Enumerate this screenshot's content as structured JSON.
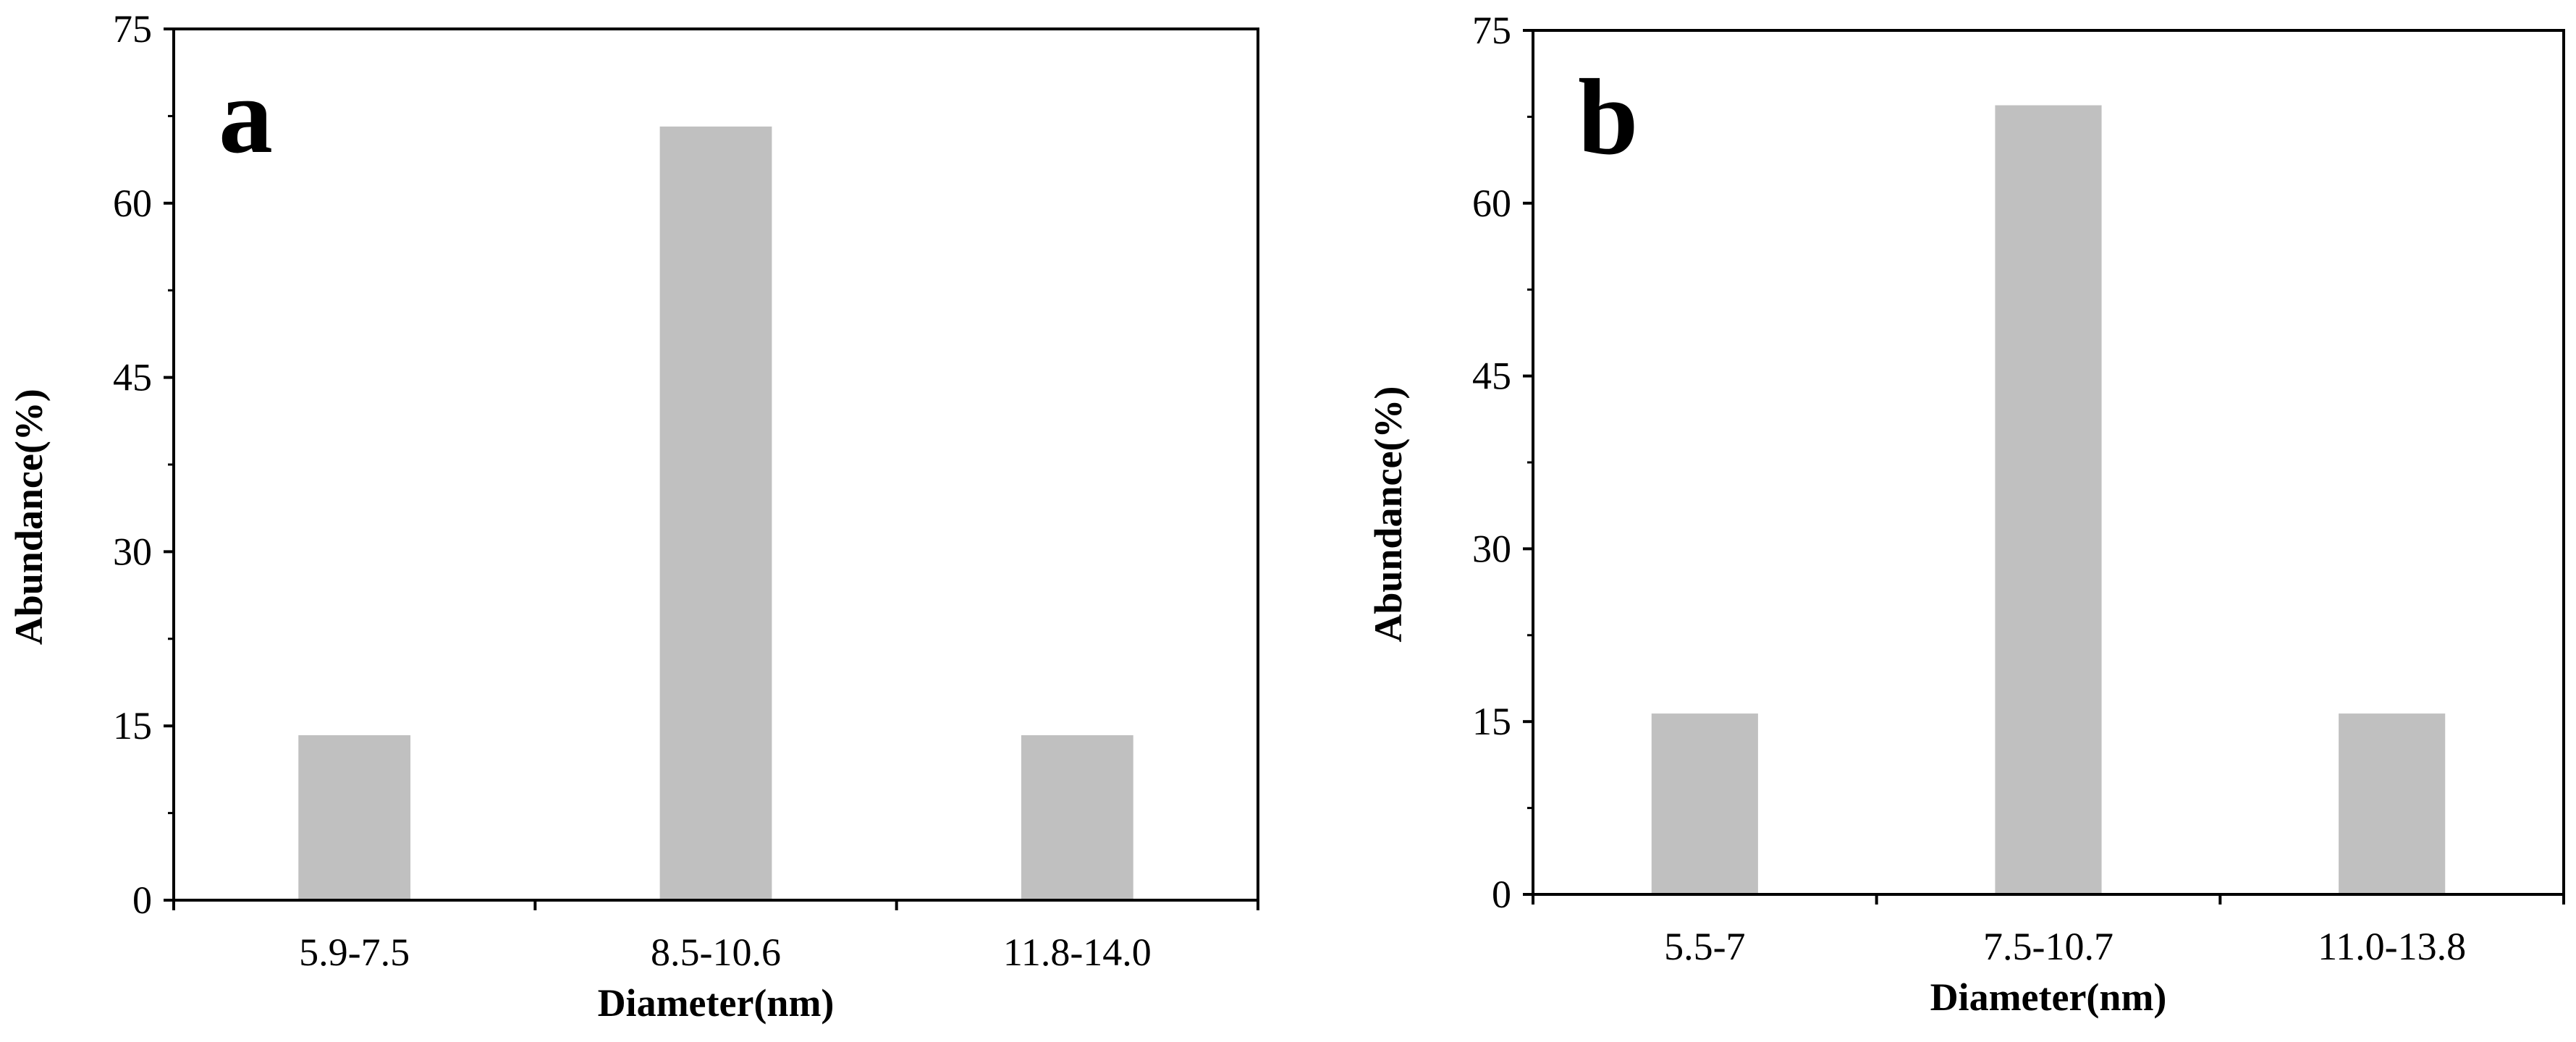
{
  "chart_data": [
    {
      "type": "bar",
      "panel_label": "a",
      "categories": [
        "5.9-7.5",
        "8.5-10.6",
        "11.8-14.0"
      ],
      "values": [
        14.2,
        66.6,
        14.2
      ],
      "xlabel": "Diameter(nm)",
      "ylabel": "Abundance(%)",
      "ylim": [
        0,
        75
      ],
      "yticks": [
        0,
        15,
        30,
        45,
        60,
        75
      ],
      "bar_color": "#c0c0c0",
      "grid": false
    },
    {
      "type": "bar",
      "panel_label": "b",
      "categories": [
        "5.5-7",
        "7.5-10.7",
        "11.0-13.8"
      ],
      "values": [
        15.7,
        68.5,
        15.7
      ],
      "xlabel": "Diameter(nm)",
      "ylabel": "Abundance(%)",
      "ylim": [
        0,
        75
      ],
      "yticks": [
        0,
        15,
        30,
        45,
        60,
        75
      ],
      "bar_color": "#c0c0c0",
      "grid": false
    }
  ]
}
